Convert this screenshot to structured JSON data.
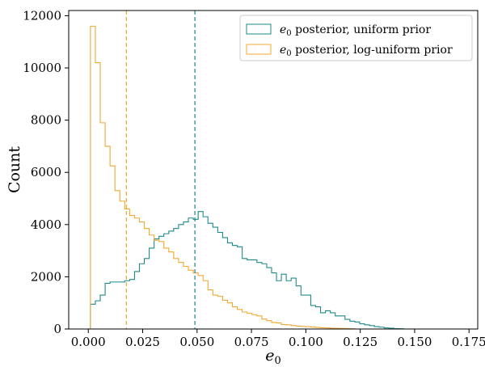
{
  "chart_data": {
    "type": "histogram",
    "xlabel_base": "e",
    "xlabel_sub": "0",
    "ylabel": "Count",
    "xlim": [
      -0.009,
      0.179
    ],
    "ylim": [
      0,
      12200
    ],
    "xticks": [
      0.0,
      0.025,
      0.05,
      0.075,
      0.1,
      0.125,
      0.15,
      0.175
    ],
    "xtick_labels": [
      "0.000",
      "0.025",
      "0.050",
      "0.075",
      "0.100",
      "0.125",
      "0.150",
      "0.175"
    ],
    "yticks": [
      0,
      2000,
      4000,
      6000,
      8000,
      10000,
      12000
    ],
    "ytick_labels": [
      "0",
      "2000",
      "4000",
      "6000",
      "8000",
      "10000",
      "12000"
    ],
    "legend_position": "top-right",
    "series": [
      {
        "name_base": "e",
        "name_sub": "0",
        "name_rest": " posterior, uniform prior",
        "color": "#1f8a8a",
        "bin_start": 0.001,
        "bin_width": 0.00225,
        "counts": [
          950,
          1080,
          1300,
          1750,
          1800,
          1800,
          1800,
          1850,
          1900,
          2200,
          2500,
          2700,
          3100,
          3450,
          3550,
          3650,
          3750,
          3850,
          4000,
          4100,
          4250,
          4200,
          4500,
          4300,
          4050,
          3900,
          3700,
          3500,
          3300,
          3200,
          3150,
          2700,
          2650,
          2650,
          2550,
          2500,
          2350,
          2150,
          1850,
          2100,
          1850,
          1950,
          1650,
          1300,
          1300,
          900,
          850,
          620,
          700,
          620,
          500,
          500,
          370,
          300,
          270,
          200,
          160,
          130,
          90,
          70,
          40,
          30,
          15,
          10
        ],
        "median": 0.049
      },
      {
        "name_base": "e",
        "name_sub": "0",
        "name_rest": " posterior, log-uniform prior",
        "color": "#f0a830",
        "bin_start": 0.001,
        "bin_width": 0.00225,
        "counts": [
          11600,
          10200,
          7900,
          7000,
          6250,
          5300,
          4900,
          4600,
          4350,
          4250,
          4100,
          3850,
          3600,
          3400,
          3350,
          3100,
          2950,
          2700,
          2550,
          2400,
          2250,
          2150,
          2050,
          1850,
          1500,
          1300,
          1250,
          1100,
          1000,
          850,
          750,
          650,
          600,
          550,
          500,
          380,
          320,
          250,
          230,
          170,
          160,
          130,
          110,
          100,
          90,
          75,
          60,
          50,
          40,
          30,
          25,
          20,
          15,
          10
        ],
        "median": 0.0175
      }
    ]
  }
}
